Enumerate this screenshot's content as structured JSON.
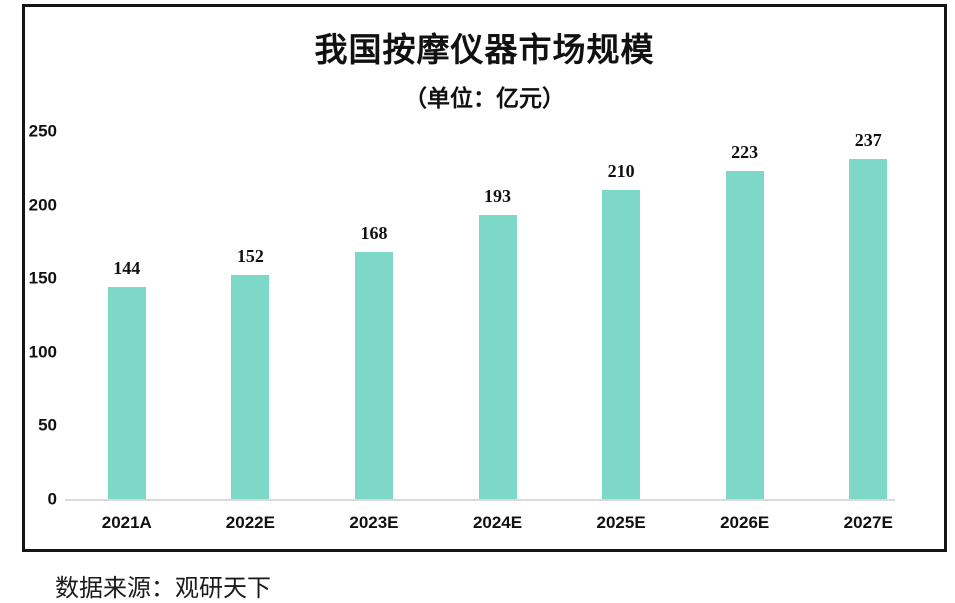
{
  "chart_data": {
    "type": "bar",
    "title": "我国按摩仪器市场规模",
    "subtitle": "（单位：亿元）",
    "categories": [
      "2021A",
      "2022E",
      "2023E",
      "2024E",
      "2025E",
      "2026E",
      "2027E"
    ],
    "values": [
      144,
      152,
      168,
      193,
      210,
      223,
      237
    ],
    "yticks": [
      0,
      50,
      100,
      150,
      200,
      250
    ],
    "ylim": [
      0,
      250
    ],
    "bar_color": "#7dd8c8",
    "grid": false,
    "legend": false,
    "data_labels": true
  },
  "source": {
    "text": "数据来源：观研天下"
  }
}
